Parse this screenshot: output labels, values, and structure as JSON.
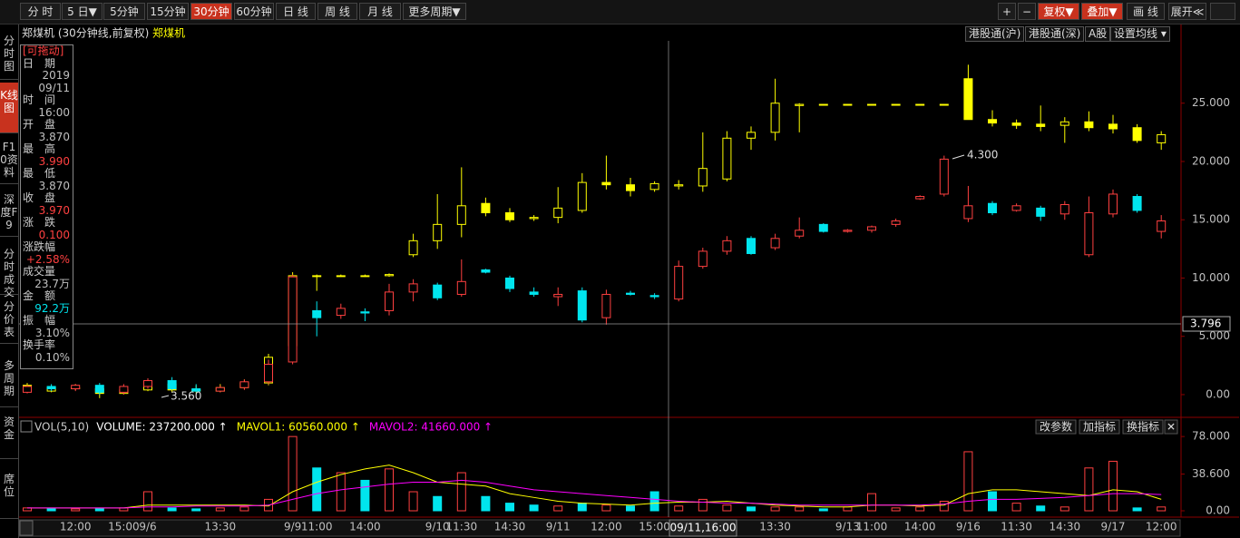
{
  "toolbar": {
    "periods": [
      "分 时",
      "5 日▼",
      "5分钟",
      "15分钟",
      "30分钟",
      "60分钟",
      "日 线",
      "周 线",
      "月 线",
      "更多周期▼"
    ],
    "right_buttons": [
      "+",
      "−",
      "复权▼",
      "叠加▼",
      "画 线",
      "展开≪"
    ]
  },
  "sidebar": [
    "分时图",
    "K线图",
    "F10资料",
    "深度F9",
    "分时成交",
    "分价表",
    "多周期",
    "资金",
    "席位"
  ],
  "top_right_buttons": [
    "港股通(沪)",
    "港股通(深)",
    "A股",
    "设置均线 ▾"
  ],
  "info_panel": {
    "title": "[可拖动]",
    "rows": [
      {
        "label": "日　期",
        "values": [
          "2019",
          "09/11"
        ],
        "color": "#c0c0c0"
      },
      {
        "label": "时　间",
        "values": [
          "16:00"
        ],
        "color": "#c0c0c0"
      },
      {
        "label": "开　盘",
        "values": [
          "3.870"
        ],
        "color": "#c0c0c0"
      },
      {
        "label": "最　高",
        "values": [
          "3.990"
        ],
        "color": "#ff4040"
      },
      {
        "label": "最　低",
        "values": [
          "3.870"
        ],
        "color": "#c0c0c0"
      },
      {
        "label": "收　盘",
        "values": [
          "3.970"
        ],
        "color": "#ff4040"
      },
      {
        "label": "涨　跌",
        "values": [
          "0.100"
        ],
        "color": "#ff4040"
      },
      {
        "label": "涨跌幅",
        "values": [
          "+2.58%"
        ],
        "color": "#ff4040"
      },
      {
        "label": "成交量",
        "values": [
          "23.7万"
        ],
        "color": "#c0c0c0"
      },
      {
        "label": "金　额",
        "values": [
          "92.2万"
        ],
        "color": "#00e5ee"
      },
      {
        "label": "振　幅",
        "values": [
          "3.10%"
        ],
        "color": "#c0c0c0"
      },
      {
        "label": "换手率",
        "values": [
          "0.10%"
        ],
        "color": "#c0c0c0"
      }
    ]
  },
  "chart_data": [
    {
      "type": "candlestick",
      "title": "郑煤机 (30分钟线,前复权)",
      "subtitle": "郑煤机",
      "crosshair_label": "3.796",
      "crosshair_time": "09/11,16:00",
      "annotations": [
        "3.560",
        "4.300"
      ],
      "categories": [
        null,
        null,
        "12:00",
        null,
        "15:00",
        "9/6",
        null,
        null,
        "13:30",
        null,
        null,
        "9/9",
        "11:00",
        null,
        "14:00",
        null,
        null,
        "9/10",
        "11:30",
        null,
        "14:30",
        null,
        "9/11",
        null,
        "12:00",
        null,
        "15:00",
        null,
        null,
        null,
        null,
        "13:30",
        null,
        null,
        "9/13",
        "11:00",
        null,
        "14:00",
        null,
        "9/16",
        null,
        "11:30",
        null,
        "14:30",
        null,
        "9/17",
        null,
        "12:00"
      ],
      "ylim": [
        -1.95,
        30.35
      ],
      "yticks": [
        {
          "value": 0,
          "label": "0.00"
        },
        {
          "value": 5,
          "label": "5.000"
        },
        {
          "value": 10,
          "label": "10.000"
        },
        {
          "value": 15,
          "label": "15.000"
        },
        {
          "value": 20,
          "label": "20.000"
        },
        {
          "value": 25,
          "label": "25.000"
        }
      ],
      "series": [
        {
          "name": "郑煤机",
          "color": "#ffff00",
          "down_color": "#ffff00",
          "ohlc": [
            [
              0.8,
              1.0,
              0.3,
              0.4
            ],
            [
              0.3,
              0.8,
              0.2,
              0.6
            ],
            [
              0.6,
              0.9,
              0.4,
              0.5
            ],
            [
              0.5,
              0.6,
              -0.3,
              0.1
            ],
            [
              0.1,
              0.6,
              0.0,
              0.4
            ],
            [
              0.4,
              1.2,
              0.3,
              0.9
            ],
            [
              0.9,
              1.1,
              0.2,
              0.4
            ],
            [
              0.4,
              0.8,
              0.1,
              0.3
            ],
            [
              0.3,
              0.9,
              0.2,
              0.6
            ],
            [
              0.6,
              1.3,
              0.5,
              1.0
            ],
            [
              1.0,
              3.5,
              0.8,
              3.2
            ],
            [
              4.2,
              10.5,
              4.0,
              10.2
            ],
            [
              10.2,
              10.3,
              8.9,
              10.2
            ],
            [
              10.2,
              10.3,
              10.1,
              10.2
            ],
            [
              10.2,
              10.3,
              10.1,
              10.2
            ],
            [
              10.2,
              10.4,
              10.1,
              10.3
            ],
            [
              12.0,
              13.8,
              11.8,
              13.2
            ],
            [
              13.2,
              17.2,
              12.5,
              14.6
            ],
            [
              14.6,
              19.5,
              13.5,
              16.2
            ],
            [
              16.4,
              16.9,
              15.3,
              15.6
            ],
            [
              15.6,
              16.0,
              14.8,
              15.0
            ],
            [
              15.1,
              15.4,
              14.9,
              15.2
            ],
            [
              15.2,
              17.8,
              14.7,
              16.0
            ],
            [
              15.8,
              19.0,
              15.6,
              18.2
            ],
            [
              18.2,
              20.5,
              17.6,
              18.0
            ],
            [
              18.0,
              18.6,
              17.0,
              17.5
            ],
            [
              17.6,
              18.3,
              17.4,
              18.1
            ],
            [
              17.9,
              18.4,
              17.6,
              18.0
            ],
            [
              17.9,
              22.5,
              17.4,
              19.4
            ],
            [
              18.5,
              22.6,
              18.3,
              22.0
            ],
            [
              22.0,
              23.0,
              21.0,
              22.5
            ],
            [
              22.5,
              27.1,
              21.8,
              25.0
            ],
            [
              24.8,
              25.0,
              22.5,
              24.9
            ],
            [
              24.9,
              24.9,
              24.8,
              24.9
            ],
            [
              24.9,
              24.9,
              24.8,
              24.9
            ],
            [
              24.9,
              24.9,
              24.8,
              24.9
            ],
            [
              24.9,
              24.9,
              24.8,
              24.9
            ],
            [
              24.9,
              24.9,
              24.8,
              24.9
            ],
            [
              24.9,
              24.9,
              24.8,
              24.9
            ],
            [
              27.1,
              28.3,
              23.6,
              23.6
            ],
            [
              23.6,
              24.4,
              23.0,
              23.3
            ],
            [
              23.3,
              23.6,
              22.8,
              23.1
            ],
            [
              23.2,
              24.8,
              22.6,
              23.0
            ],
            [
              23.1,
              23.8,
              21.6,
              23.4
            ],
            [
              23.4,
              24.3,
              22.6,
              22.9
            ],
            [
              23.2,
              24.0,
              22.4,
              22.8
            ],
            [
              22.9,
              23.2,
              21.6,
              21.8
            ],
            [
              21.6,
              22.6,
              21.0,
              22.3
            ]
          ]
        },
        {
          "color": "#ff4040",
          "down_color": "#00e5ee",
          "ohlc": [
            [
              0.2,
              0.8,
              0.1,
              0.7
            ],
            [
              0.7,
              0.9,
              0.3,
              0.5
            ],
            [
              0.5,
              0.9,
              0.3,
              0.8
            ],
            [
              0.8,
              1.0,
              0.0,
              0.2
            ],
            [
              0.2,
              0.9,
              0.0,
              0.7
            ],
            [
              0.7,
              1.4,
              0.5,
              1.2
            ],
            [
              1.2,
              1.5,
              0.4,
              0.5
            ],
            [
              0.5,
              0.9,
              0.2,
              0.3
            ],
            [
              0.3,
              0.8,
              0.2,
              0.6
            ],
            [
              0.6,
              1.3,
              0.4,
              1.1
            ],
            [
              1.1,
              3.0,
              0.9,
              2.6
            ],
            [
              2.8,
              10.3,
              2.6,
              10.1
            ],
            [
              7.2,
              8.0,
              5.0,
              6.6
            ],
            [
              6.8,
              7.8,
              6.5,
              7.4
            ],
            [
              7.1,
              7.4,
              6.3,
              7.0
            ],
            [
              7.2,
              9.5,
              6.8,
              8.8
            ],
            [
              8.8,
              9.9,
              8.0,
              9.5
            ],
            [
              9.4,
              9.6,
              8.1,
              8.3
            ],
            [
              8.6,
              11.6,
              8.4,
              9.7
            ],
            [
              10.7,
              10.8,
              10.4,
              10.5
            ],
            [
              10.0,
              10.2,
              8.8,
              9.1
            ],
            [
              8.8,
              9.2,
              8.4,
              8.6
            ],
            [
              8.4,
              9.2,
              7.6,
              8.6
            ],
            [
              8.9,
              9.2,
              6.2,
              6.4
            ],
            [
              6.6,
              9.0,
              6.0,
              8.6
            ],
            [
              8.7,
              8.9,
              8.5,
              8.6
            ],
            [
              8.5,
              8.7,
              8.2,
              8.4
            ],
            [
              8.2,
              11.5,
              8.0,
              11.0
            ],
            [
              11.0,
              12.6,
              10.8,
              12.3
            ],
            [
              12.3,
              13.6,
              12.0,
              13.2
            ],
            [
              13.4,
              13.6,
              12.0,
              12.1
            ],
            [
              12.6,
              13.8,
              12.4,
              13.4
            ],
            [
              13.6,
              15.2,
              13.4,
              14.1
            ],
            [
              14.6,
              14.7,
              13.9,
              14.0
            ],
            [
              14.0,
              14.2,
              13.9,
              14.1
            ],
            [
              14.1,
              14.5,
              13.9,
              14.4
            ],
            [
              14.6,
              15.1,
              14.4,
              14.9
            ],
            [
              16.8,
              17.1,
              16.7,
              17.0
            ],
            [
              17.2,
              20.5,
              17.0,
              20.2
            ],
            [
              15.1,
              17.9,
              14.8,
              16.2
            ],
            [
              16.4,
              16.6,
              15.4,
              15.6
            ],
            [
              15.8,
              16.4,
              15.7,
              16.2
            ],
            [
              16.0,
              16.2,
              14.9,
              15.3
            ],
            [
              15.5,
              16.6,
              15.0,
              16.3
            ],
            [
              12.0,
              17.0,
              11.8,
              15.6
            ],
            [
              15.5,
              17.6,
              15.2,
              17.2
            ],
            [
              17.0,
              17.2,
              15.6,
              15.8
            ],
            [
              14.0,
              15.4,
              13.4,
              14.9
            ]
          ]
        }
      ]
    },
    {
      "type": "bar",
      "title": "VOL(5,10)",
      "legend": [
        {
          "text": "VOLUME: 237200.000 ↑",
          "color": "#ffffff"
        },
        {
          "text": "MAVOL1: 60560.000 ↑",
          "color": "#ffff00"
        },
        {
          "text": "MAVOL2: 41660.000 ↑",
          "color": "#ff00ff"
        }
      ],
      "buttons": [
        "改参数",
        "加指标",
        "换指标",
        "✕"
      ],
      "ylim": [
        0,
        81
      ],
      "yticks": [
        {
          "value": 0,
          "label": "0.00"
        },
        {
          "value": 38.6,
          "label": "38.600"
        },
        {
          "value": 78,
          "label": "78.000"
        }
      ],
      "values": [
        3,
        2,
        2,
        2,
        3,
        20,
        3,
        2,
        3,
        4,
        12,
        78,
        45,
        40,
        32,
        44,
        20,
        15,
        40,
        15,
        8,
        6,
        5,
        8,
        6,
        5,
        20,
        5,
        12,
        6,
        4,
        4,
        4,
        2,
        4,
        18,
        3,
        4,
        10,
        62,
        20,
        8,
        5,
        4,
        45,
        52,
        3,
        4
      ],
      "up_color": "#ff4040",
      "down_color": "#00e5ee",
      "series": [
        {
          "color": "#ffff00",
          "values": [
            3,
            3,
            3,
            3,
            3,
            6,
            6,
            6,
            6,
            6,
            5,
            20,
            30,
            38,
            44,
            48,
            40,
            30,
            28,
            26,
            18,
            14,
            10,
            8,
            7,
            6,
            8,
            9,
            9,
            10,
            8,
            6,
            5,
            4,
            4,
            6,
            6,
            5,
            6,
            18,
            22,
            22,
            20,
            18,
            16,
            22,
            20,
            12
          ]
        },
        {
          "color": "#ff00ff",
          "values": [
            3,
            3,
            3,
            3,
            3,
            4,
            4,
            5,
            5,
            5,
            6,
            12,
            18,
            22,
            25,
            28,
            30,
            30,
            32,
            30,
            26,
            22,
            20,
            18,
            16,
            14,
            12,
            10,
            9,
            8,
            8,
            7,
            6,
            6,
            6,
            6,
            6,
            6,
            7,
            10,
            12,
            12,
            13,
            14,
            16,
            18,
            18,
            17
          ]
        }
      ]
    }
  ]
}
